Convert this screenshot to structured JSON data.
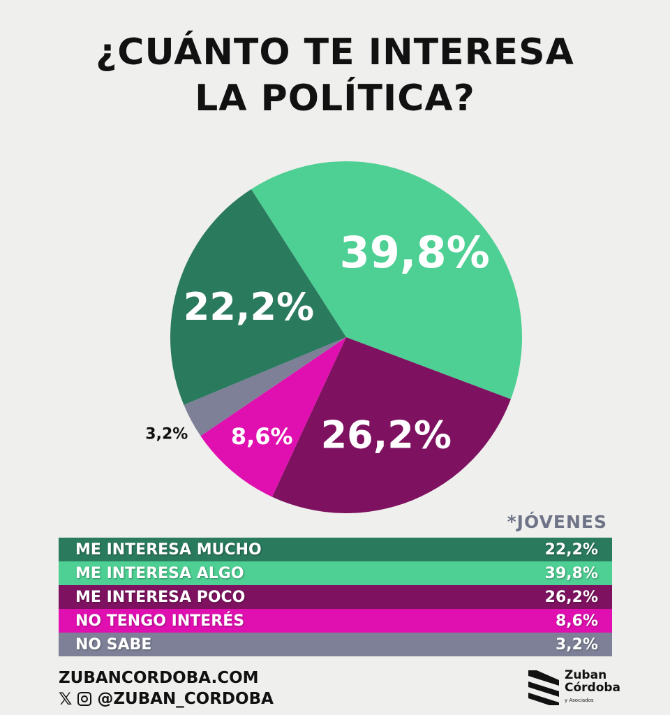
{
  "chart_data": {
    "type": "pie",
    "title": "¿CUÁNTO TE INTERESA LA POLÍTICA?",
    "subtitle": "*JÓVENES",
    "slices": [
      {
        "label": "ME INTERESA ALGO",
        "value": 39.8,
        "display": "39,8%",
        "color": "#4ecf93"
      },
      {
        "label": "ME INTERESA POCO",
        "value": 26.2,
        "display": "26,2%",
        "color": "#7e1260"
      },
      {
        "label": "NO TENGO INTERÉS",
        "value": 8.6,
        "display": "8,6%",
        "color": "#e010b0"
      },
      {
        "label": "NO SABE",
        "value": 3.2,
        "display": "3,2%",
        "color": "#7d8096"
      },
      {
        "label": "ME INTERESA MUCHO",
        "value": 22.2,
        "display": "22,2%",
        "color": "#2a7a5e"
      }
    ],
    "legend": [
      {
        "label": "ME INTERESA MUCHO",
        "display": "22,2%",
        "color": "#2a7a5e"
      },
      {
        "label": "ME INTERESA ALGO",
        "display": "39,8%",
        "color": "#4ecf93"
      },
      {
        "label": "ME INTERESA POCO",
        "display": "26,2%",
        "color": "#7e1260"
      },
      {
        "label": "NO TENGO INTERÉS",
        "display": "8,6%",
        "color": "#e010b0"
      },
      {
        "label": "NO SABE",
        "display": "3,2%",
        "color": "#7d8096"
      }
    ]
  },
  "title_line1": "¿CUÁNTO TE INTERESA",
  "title_line2": "LA POLÍTICA?",
  "footer": {
    "website": "ZUBANCORDOBA.COM",
    "handle": "@ZUBAN_CORDOBA",
    "logo_line1": "Zuban",
    "logo_line2": "Córdoba",
    "logo_line3": "y Asociados"
  }
}
